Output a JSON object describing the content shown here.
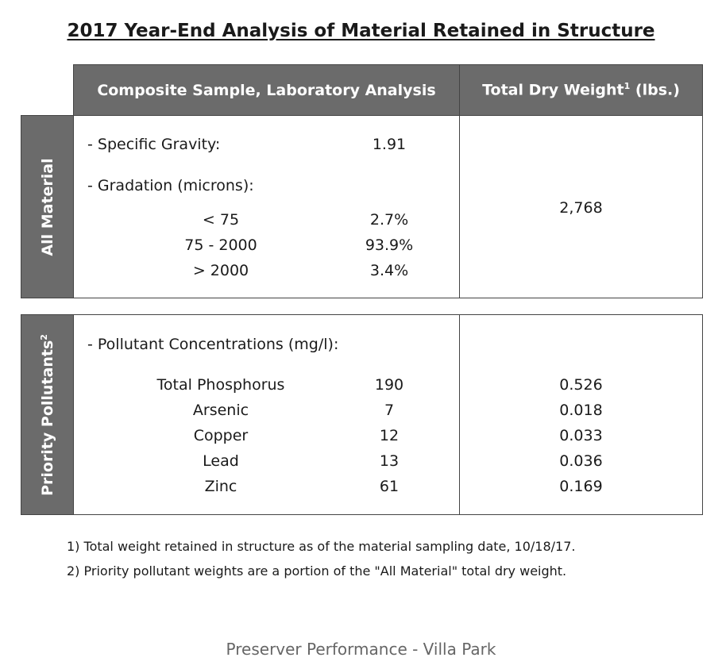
{
  "title": "2017 Year-End Analysis of Material Retained in Structure",
  "header": {
    "col1": "Composite Sample, Laboratory Analysis",
    "col2": "Total Dry Weight",
    "col2_sup": "1",
    "col2_unit": " (lbs.)"
  },
  "all_material": {
    "label": "All Material",
    "specific_gravity_label": "-  Specific Gravity:",
    "specific_gravity_value": "1.91",
    "gradation_label": "-  Gradation (microns):",
    "gradation": [
      {
        "range": "< 75",
        "value": "2.7%"
      },
      {
        "range": "75 - 2000",
        "value": "93.9%"
      },
      {
        "range": "> 2000",
        "value": "3.4%"
      }
    ],
    "total_weight": "2,768"
  },
  "priority": {
    "label": "Priority Pollutants",
    "label_sup": "2",
    "conc_label": "-  Pollutant Concentrations (mg/l):",
    "rows": [
      {
        "name": "Total Phosphorus",
        "conc": "190",
        "weight": "0.526"
      },
      {
        "name": "Arsenic",
        "conc": "7",
        "weight": "0.018"
      },
      {
        "name": "Copper",
        "conc": "12",
        "weight": "0.033"
      },
      {
        "name": "Lead",
        "conc": "13",
        "weight": "0.036"
      },
      {
        "name": "Zinc",
        "conc": "61",
        "weight": "0.169"
      }
    ]
  },
  "footnotes": [
    "1)  Total weight retained in structure as of the material sampling date, 10/18/17.",
    "2)  Priority pollutant weights are a portion of the \"All Material\" total dry weight."
  ],
  "footer": "Preserver Performance - Villa Park"
}
